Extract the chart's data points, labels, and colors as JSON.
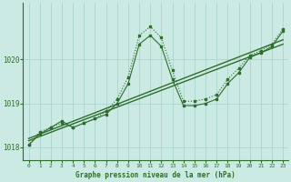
{
  "title": "Graphe pression niveau de la mer (hPa)",
  "bg_color": "#cceae4",
  "grid_color": "#aad4cc",
  "line_color": "#2d6e2d",
  "xlim": [
    -0.5,
    23.5
  ],
  "ylim": [
    1017.7,
    1021.3
  ],
  "yticks": [
    1018,
    1019,
    1020
  ],
  "xticks": [
    0,
    1,
    2,
    3,
    4,
    5,
    6,
    7,
    8,
    9,
    10,
    11,
    12,
    13,
    14,
    15,
    16,
    17,
    18,
    19,
    20,
    21,
    22,
    23
  ],
  "dotted_x": [
    0,
    1,
    2,
    3,
    4,
    5,
    6,
    7,
    8,
    9,
    10,
    11,
    12,
    13,
    14,
    15,
    16,
    17,
    18,
    19,
    20,
    21,
    22,
    23
  ],
  "dotted_y": [
    1018.05,
    1018.35,
    1018.45,
    1018.55,
    1018.45,
    1018.55,
    1018.65,
    1018.82,
    1019.1,
    1019.6,
    1020.55,
    1020.75,
    1020.5,
    1019.75,
    1019.05,
    1019.05,
    1019.1,
    1019.2,
    1019.55,
    1019.8,
    1020.1,
    1020.2,
    1020.35,
    1020.7
  ],
  "solid_x": [
    0,
    1,
    2,
    3,
    4,
    5,
    6,
    7,
    8,
    9,
    10,
    11,
    12,
    13,
    14,
    15,
    16,
    17,
    18,
    19,
    20,
    21,
    22,
    23
  ],
  "solid_y": [
    1018.05,
    1018.3,
    1018.45,
    1018.6,
    1018.45,
    1018.55,
    1018.65,
    1018.75,
    1019.0,
    1019.45,
    1020.35,
    1020.55,
    1020.3,
    1019.55,
    1018.95,
    1018.95,
    1019.0,
    1019.1,
    1019.45,
    1019.7,
    1020.05,
    1020.15,
    1020.3,
    1020.65
  ],
  "trend1_x": [
    0,
    23
  ],
  "trend1_y": [
    1018.15,
    1020.35
  ],
  "trend2_x": [
    0,
    23
  ],
  "trend2_y": [
    1018.2,
    1020.45
  ]
}
